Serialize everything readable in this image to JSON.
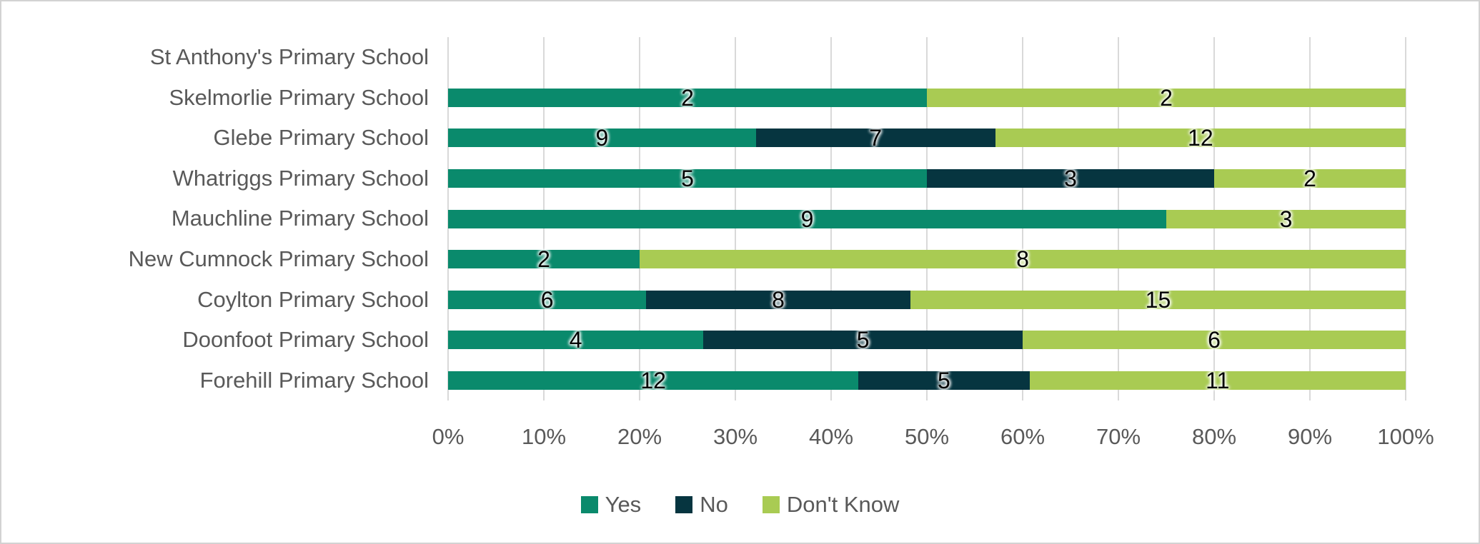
{
  "chart_data": {
    "type": "bar",
    "subtype": "100%-stacked-horizontal",
    "title": "",
    "categories": [
      "St Anthony's Primary School",
      "Skelmorlie Primary School",
      "Glebe Primary School",
      "Whatriggs Primary School",
      "Mauchline Primary School",
      "New Cumnock Primary School",
      "Coylton Primary School",
      "Doonfoot Primary School",
      "Forehill Primary School"
    ],
    "series": [
      {
        "name": "Yes",
        "color": "#0a8a6c",
        "values": [
          0,
          2,
          9,
          5,
          9,
          2,
          6,
          4,
          12
        ]
      },
      {
        "name": "No",
        "color": "#063540",
        "values": [
          0,
          0,
          7,
          3,
          0,
          0,
          8,
          5,
          5
        ]
      },
      {
        "name": "Don't Know",
        "color": "#a9cb53",
        "values": [
          0,
          2,
          12,
          2,
          3,
          8,
          15,
          6,
          11
        ]
      }
    ],
    "x_ticks": [
      "0%",
      "10%",
      "20%",
      "30%",
      "40%",
      "50%",
      "60%",
      "70%",
      "80%",
      "90%",
      "100%"
    ],
    "xlim": [
      0,
      100
    ],
    "grid": "vertical-only",
    "gridline_color": "#d9d9d9",
    "label_color": "#595959",
    "data_label_color": "#000000",
    "legend_position": "bottom-center",
    "legend_labels": [
      "Yes",
      "No",
      "Don't Know"
    ]
  },
  "layout_values": {
    "note": "values shown as labels only where segment value > 0"
  }
}
